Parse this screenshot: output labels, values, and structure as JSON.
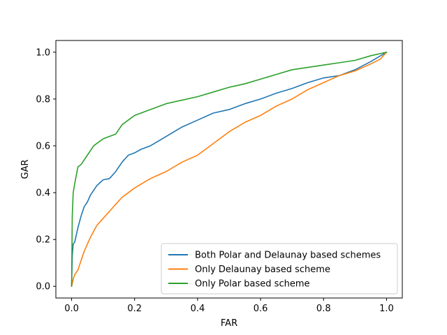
{
  "chart_data": {
    "type": "line",
    "title": "",
    "xlabel": "FAR",
    "ylabel": "GAR",
    "xlim": [
      -0.05,
      1.05
    ],
    "ylim": [
      -0.05,
      1.05
    ],
    "xticks": [
      0.0,
      0.2,
      0.4,
      0.6,
      0.8,
      1.0
    ],
    "xtick_labels": [
      "0.0",
      "0.2",
      "0.4",
      "0.6",
      "0.8",
      "1.0"
    ],
    "yticks": [
      0.0,
      0.2,
      0.4,
      0.6,
      0.8,
      1.0
    ],
    "ytick_labels": [
      "0.0",
      "0.2",
      "0.4",
      "0.6",
      "0.8",
      "1.0"
    ],
    "grid": false,
    "legend_position": "lower-right",
    "series": [
      {
        "name": "Both Polar and Delaunay based schemes",
        "color": "#1f77b4",
        "x": [
          0,
          0.002,
          0.005,
          0.01,
          0.02,
          0.03,
          0.04,
          0.05,
          0.06,
          0.08,
          0.1,
          0.12,
          0.14,
          0.16,
          0.18,
          0.2,
          0.22,
          0.25,
          0.3,
          0.35,
          0.4,
          0.45,
          0.5,
          0.55,
          0.6,
          0.65,
          0.7,
          0.75,
          0.8,
          0.85,
          0.9,
          0.95,
          1.0
        ],
        "y": [
          0,
          0.13,
          0.18,
          0.19,
          0.25,
          0.3,
          0.34,
          0.36,
          0.39,
          0.43,
          0.455,
          0.46,
          0.49,
          0.53,
          0.56,
          0.57,
          0.585,
          0.6,
          0.64,
          0.68,
          0.71,
          0.74,
          0.755,
          0.78,
          0.8,
          0.825,
          0.845,
          0.87,
          0.89,
          0.9,
          0.925,
          0.96,
          1.0
        ]
      },
      {
        "name": "Only Delaunay based scheme",
        "color": "#ff7f0e",
        "x": [
          0,
          0.005,
          0.01,
          0.02,
          0.03,
          0.04,
          0.05,
          0.06,
          0.08,
          0.1,
          0.12,
          0.14,
          0.16,
          0.18,
          0.2,
          0.25,
          0.3,
          0.35,
          0.4,
          0.45,
          0.5,
          0.55,
          0.6,
          0.65,
          0.7,
          0.75,
          0.8,
          0.85,
          0.9,
          0.95,
          0.98,
          1.0
        ],
        "y": [
          0,
          0.03,
          0.05,
          0.07,
          0.11,
          0.15,
          0.18,
          0.21,
          0.26,
          0.29,
          0.32,
          0.35,
          0.38,
          0.4,
          0.42,
          0.46,
          0.49,
          0.53,
          0.56,
          0.61,
          0.66,
          0.7,
          0.73,
          0.77,
          0.8,
          0.84,
          0.87,
          0.9,
          0.92,
          0.95,
          0.97,
          1.0
        ]
      },
      {
        "name": "Only Polar based scheme",
        "color": "#2ca02c",
        "x": [
          0,
          0.002,
          0.005,
          0.01,
          0.02,
          0.03,
          0.05,
          0.07,
          0.1,
          0.12,
          0.14,
          0.16,
          0.18,
          0.2,
          0.25,
          0.3,
          0.35,
          0.4,
          0.45,
          0.5,
          0.55,
          0.6,
          0.65,
          0.7,
          0.75,
          0.8,
          0.85,
          0.9,
          0.95,
          1.0
        ],
        "y": [
          0,
          0.3,
          0.4,
          0.44,
          0.51,
          0.52,
          0.56,
          0.6,
          0.63,
          0.64,
          0.65,
          0.69,
          0.71,
          0.73,
          0.755,
          0.78,
          0.795,
          0.81,
          0.83,
          0.85,
          0.865,
          0.885,
          0.905,
          0.925,
          0.935,
          0.945,
          0.955,
          0.965,
          0.985,
          1.0
        ]
      }
    ]
  }
}
